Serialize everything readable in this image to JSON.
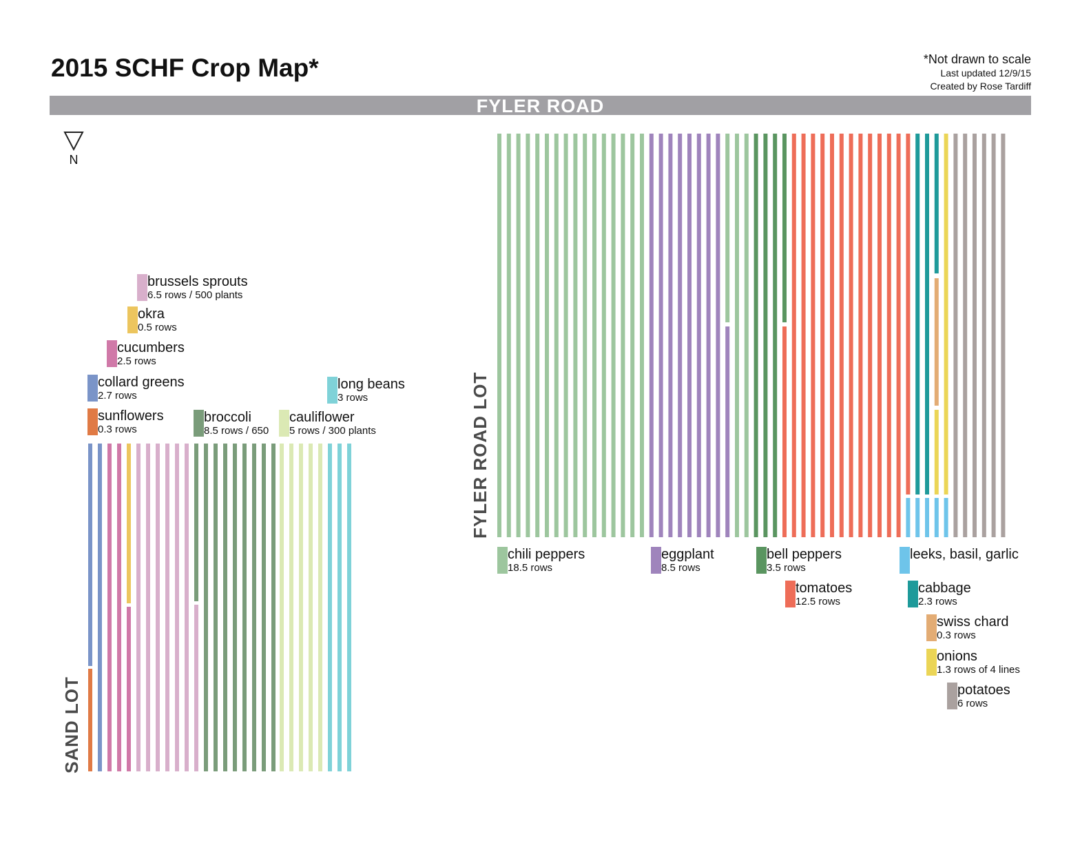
{
  "header": {
    "title": "2015 SCHF Crop Map*",
    "note_scale": "*Not drawn to scale",
    "note_updated": "Last updated 12/9/15",
    "note_created": "Created by Rose Tardiff"
  },
  "road_label": "FYLER ROAD",
  "north_label": "N",
  "lots": {
    "sand": "SAND LOT",
    "fyler": "FYLER ROAD LOT"
  },
  "colors": {
    "sunflowers": "#e07a45",
    "collard_greens": "#7a94c8",
    "cucumbers": "#d079a8",
    "okra": "#ecc55e",
    "brussels_sprouts": "#d8afcb",
    "broccoli": "#7a9c7a",
    "cauliflower": "#dbe9b4",
    "long_beans": "#7fd2d8",
    "chili_peppers": "#9dc69e",
    "eggplant": "#9f84bc",
    "bell_peppers": "#5a9560",
    "tomatoes": "#ee6d58",
    "leeks_basil_garlic": "#6ec4ea",
    "cabbage": "#1e9a9a",
    "swiss_chard": "#e3ac74",
    "onions": "#ebd556",
    "potatoes": "#aaa19f"
  },
  "sand_lot_crops": [
    {
      "name": "brussels sprouts",
      "info": "6.5 rows / 500 plants",
      "color": "#d8afcb"
    },
    {
      "name": "okra",
      "info": "0.5 rows",
      "color": "#ecc55e"
    },
    {
      "name": "cucumbers",
      "info": "2.5 rows",
      "color": "#d079a8"
    },
    {
      "name": "collard greens",
      "info": "2.7 rows",
      "color": "#7a94c8"
    },
    {
      "name": "sunflowers",
      "info": "0.3 rows",
      "color": "#e07a45"
    },
    {
      "name": "broccoli",
      "info": "8.5 rows / 650",
      "color": "#7a9c7a"
    },
    {
      "name": "cauliflower",
      "info": "5 rows / 300 plants",
      "color": "#dbe9b4"
    },
    {
      "name": "long beans",
      "info": "3 rows",
      "color": "#7fd2d8"
    }
  ],
  "fyler_lot_crops": [
    {
      "name": "chili peppers",
      "info": "18.5 rows",
      "color": "#9dc69e"
    },
    {
      "name": "eggplant",
      "info": "8.5 rows",
      "color": "#9f84bc"
    },
    {
      "name": "bell peppers",
      "info": "3.5 rows",
      "color": "#5a9560"
    },
    {
      "name": "tomatoes",
      "info": "12.5 rows",
      "color": "#ee6d58"
    },
    {
      "name": "leeks, basil, garlic",
      "info": "",
      "color": "#6ec4ea"
    },
    {
      "name": "cabbage",
      "info": "2.3 rows",
      "color": "#1e9a9a"
    },
    {
      "name": "swiss chard",
      "info": "0.3 rows",
      "color": "#e3ac74"
    },
    {
      "name": "onions",
      "info": "1.3 rows of 4 lines",
      "color": "#ebd556"
    },
    {
      "name": "potatoes",
      "info": "6 rows",
      "color": "#aaa19f"
    }
  ]
}
